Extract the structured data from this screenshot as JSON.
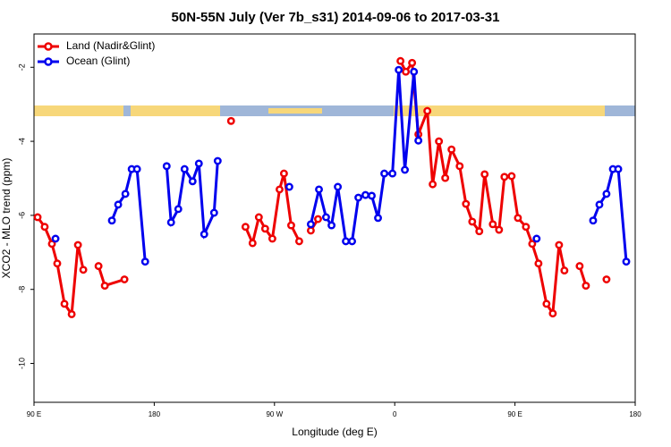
{
  "chart_data": {
    "type": "line",
    "title": "50N-55N July (Ver 7b_s31)   2014-09-06 to 2017-03-31",
    "x_label": "Longitude (deg E)",
    "y_label": "XCO2 - MLO trend (ppm)",
    "xlim": [
      90,
      540
    ],
    "ylim": [
      -11.05,
      -1.1
    ],
    "xticks": [
      {
        "value": 90,
        "label": "90 E"
      },
      180,
      {
        "value": 270,
        "label": "90 W"
      },
      {
        "value": 360,
        "label": "0"
      },
      {
        "value": 450,
        "label": "90 E"
      },
      {
        "value": 540,
        "label": "180"
      }
    ],
    "yticks": [
      -2,
      -4,
      -6,
      -8,
      -10
    ],
    "legend": "upper left",
    "series": [
      {
        "name": "Land (Nadir&Glint)",
        "color": "#ee0000",
        "x": [
          92.7,
          98,
          103.4,
          107.4,
          112.8,
          118.2,
          122.9,
          126.9,
          null,
          138.3,
          143,
          157.7,
          null,
          237.5,
          null,
          248.3,
          253.6,
          258.3,
          263,
          268.4,
          273.8,
          277.1,
          282.5,
          288.5,
          null,
          297.2,
          302.6,
          null,
          364.3,
          368.3,
          373,
          377.7,
          384.4,
          388.4,
          393.1,
          397.8,
          402.5,
          408.6,
          413.3,
          418,
          423.3,
          427.3,
          433.4,
          438.1,
          442.1,
          447.5,
          452.2,
          458.2,
          462.9,
          467.6,
          473.6,
          478.3,
          483,
          487,
          null,
          498.4,
          503.1,
          null,
          518.5
        ],
        "values": [
          -6.05,
          -6.31,
          -6.77,
          -7.3,
          -8.39,
          -8.67,
          -6.8,
          -7.47,
          null,
          -7.37,
          -7.9,
          -7.73,
          null,
          -3.45,
          null,
          -6.31,
          -6.75,
          -6.05,
          -6.36,
          -6.63,
          -5.3,
          -4.87,
          -6.27,
          -6.7,
          null,
          -6.41,
          -6.1,
          null,
          -1.83,
          -2.12,
          -1.88,
          -3.81,
          -3.18,
          -5.16,
          -4.0,
          -4.99,
          -4.22,
          -4.67,
          -5.69,
          -6.17,
          -6.43,
          -4.89,
          -6.24,
          -6.39,
          -4.96,
          -4.94,
          -6.07,
          -6.31,
          -6.77,
          -7.3,
          -8.39,
          -8.65,
          -6.8,
          -7.49,
          null,
          -7.37,
          -7.9,
          null,
          -7.73
        ]
      },
      {
        "name": "Ocean (Glint)",
        "color": "#0000ee",
        "x": [
          106.1,
          null,
          148.3,
          153,
          158.4,
          163.1,
          167.1,
          173.2,
          null,
          189.3,
          192.6,
          198,
          202.7,
          208.7,
          213.4,
          217.4,
          224.8,
          227.5,
          null,
          281.1,
          null,
          297.2,
          303.3,
          308.6,
          312.7,
          317.4,
          323.4,
          328.1,
          332.8,
          338.1,
          342.8,
          347.5,
          352.2,
          358.3,
          363,
          367.6,
          374.4,
          377.7,
          null,
          466.2,
          null,
          508.5,
          513.2,
          518.5,
          523.3,
          527.3,
          533.3
        ],
        "values": [
          -6.63,
          null,
          -6.14,
          -5.71,
          -5.42,
          -4.75,
          -4.75,
          -7.25,
          null,
          -4.67,
          -6.19,
          -5.83,
          -4.75,
          -5.08,
          -4.6,
          -6.51,
          -5.93,
          -4.53,
          null,
          -5.23,
          null,
          -6.24,
          -5.3,
          -6.05,
          -6.27,
          -5.23,
          -6.7,
          -6.7,
          -5.52,
          -5.45,
          -5.47,
          -6.07,
          -4.87,
          -4.87,
          -2.07,
          -4.77,
          -2.12,
          -3.98,
          null,
          -6.63,
          null,
          -6.14,
          -5.71,
          -5.42,
          -4.75,
          -4.75,
          -7.25
        ]
      }
    ]
  }
}
